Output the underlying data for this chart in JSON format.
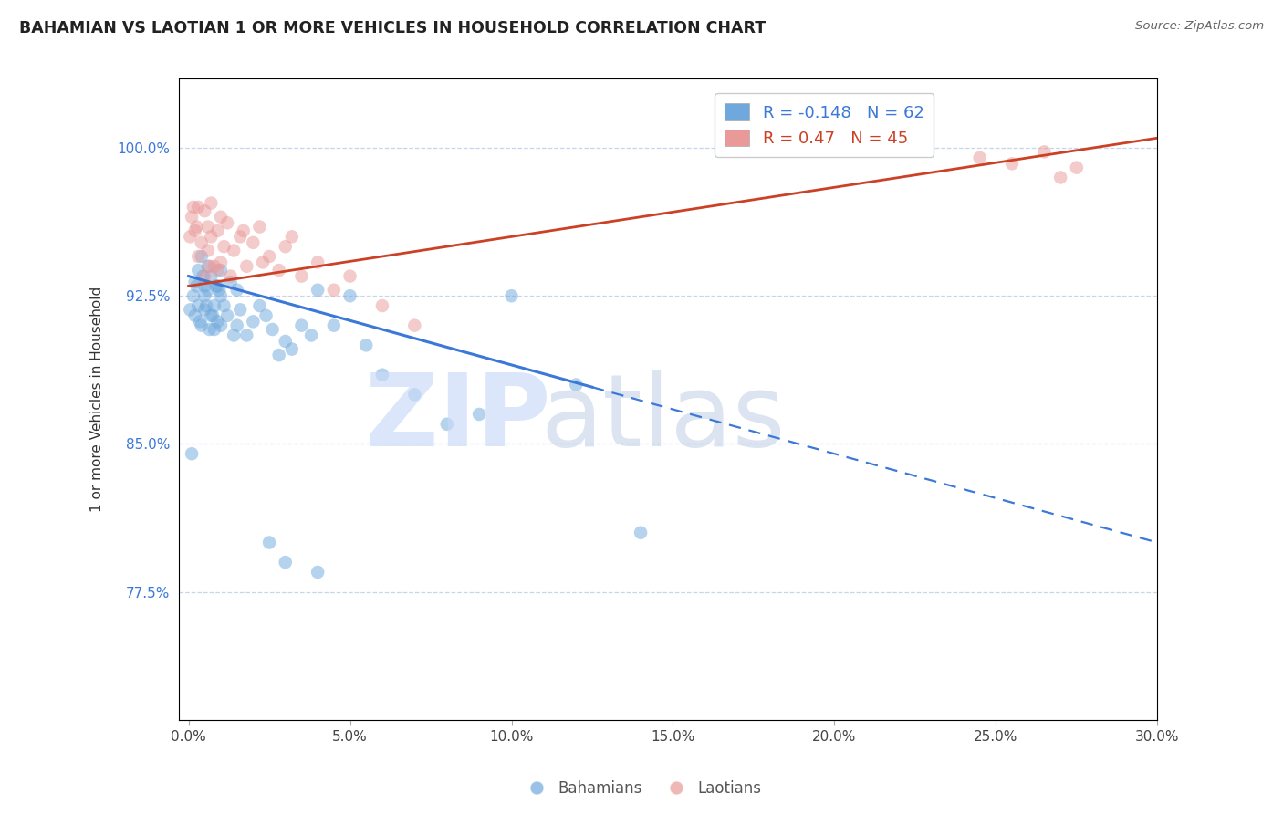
{
  "title": "BAHAMIAN VS LAOTIAN 1 OR MORE VEHICLES IN HOUSEHOLD CORRELATION CHART",
  "source": "Source: ZipAtlas.com",
  "xlabel_vals": [
    0.0,
    5.0,
    10.0,
    15.0,
    20.0,
    25.0,
    30.0
  ],
  "ylabel_vals": [
    77.5,
    85.0,
    92.5,
    100.0
  ],
  "xlim": [
    -0.3,
    30.0
  ],
  "ylim": [
    71.0,
    103.5
  ],
  "bahamian_R": -0.148,
  "bahamian_N": 62,
  "laotian_R": 0.47,
  "laotian_N": 45,
  "bahamian_color": "#6fa8dc",
  "laotian_color": "#ea9999",
  "trend_blue": "#3c78d8",
  "trend_pink": "#cc4125",
  "ylabel": "1 or more Vehicles in Household",
  "bah_trend_x0": 0.0,
  "bah_trend_y0": 93.5,
  "bah_trend_x1": 30.0,
  "bah_trend_y1": 80.0,
  "bah_solid_end": 12.5,
  "lao_trend_x0": 0.0,
  "lao_trend_y0": 93.0,
  "lao_trend_x1": 30.0,
  "lao_trend_y1": 100.5,
  "bahamian_pts_x": [
    0.1,
    0.2,
    0.2,
    0.3,
    0.3,
    0.4,
    0.4,
    0.5,
    0.5,
    0.5,
    0.6,
    0.6,
    0.7,
    0.7,
    0.8,
    0.8,
    0.9,
    0.9,
    1.0,
    1.0,
    1.0,
    1.1,
    1.2,
    1.3,
    1.4,
    1.5,
    1.6,
    1.8,
    2.0,
    2.2,
    2.4,
    2.6,
    2.8,
    3.0,
    3.2,
    3.5,
    3.8,
    4.0,
    4.5,
    5.0,
    5.5,
    6.0,
    7.0,
    8.0,
    9.0,
    10.0,
    12.0,
    14.0,
    0.05,
    0.15,
    0.25,
    0.35,
    0.45,
    0.55,
    0.65,
    0.75,
    0.85,
    0.95,
    1.5,
    2.5,
    3.0,
    4.0
  ],
  "bahamian_pts_y": [
    84.5,
    93.2,
    91.5,
    92.0,
    93.8,
    91.0,
    94.5,
    92.5,
    93.0,
    91.8,
    92.8,
    94.0,
    91.5,
    93.5,
    90.8,
    92.0,
    91.2,
    93.0,
    92.5,
    93.8,
    91.0,
    92.0,
    91.5,
    93.2,
    90.5,
    92.8,
    91.8,
    90.5,
    91.2,
    92.0,
    91.5,
    90.8,
    89.5,
    90.2,
    89.8,
    91.0,
    90.5,
    92.8,
    91.0,
    92.5,
    90.0,
    88.5,
    87.5,
    86.0,
    86.5,
    92.5,
    88.0,
    80.5,
    91.8,
    92.5,
    93.0,
    91.2,
    93.5,
    92.0,
    90.8,
    91.5,
    93.0,
    92.8,
    91.0,
    80.0,
    79.0,
    78.5
  ],
  "laotian_pts_x": [
    0.1,
    0.2,
    0.3,
    0.3,
    0.4,
    0.5,
    0.5,
    0.6,
    0.6,
    0.7,
    0.7,
    0.8,
    0.9,
    0.9,
    1.0,
    1.0,
    1.1,
    1.2,
    1.4,
    1.6,
    1.8,
    2.0,
    2.2,
    2.5,
    2.8,
    3.0,
    3.5,
    4.0,
    4.5,
    5.0,
    6.0,
    7.0,
    24.5,
    25.5,
    26.5,
    27.0,
    27.5,
    0.05,
    0.15,
    0.25,
    0.65,
    1.3,
    1.7,
    2.3,
    3.2
  ],
  "laotian_pts_y": [
    96.5,
    95.8,
    97.0,
    94.5,
    95.2,
    96.8,
    93.5,
    94.8,
    96.0,
    95.5,
    97.2,
    94.0,
    95.8,
    93.8,
    96.5,
    94.2,
    95.0,
    96.2,
    94.8,
    95.5,
    94.0,
    95.2,
    96.0,
    94.5,
    93.8,
    95.0,
    93.5,
    94.2,
    92.8,
    93.5,
    92.0,
    91.0,
    99.5,
    99.2,
    99.8,
    98.5,
    99.0,
    95.5,
    97.0,
    96.0,
    94.0,
    93.5,
    95.8,
    94.2,
    95.5
  ]
}
